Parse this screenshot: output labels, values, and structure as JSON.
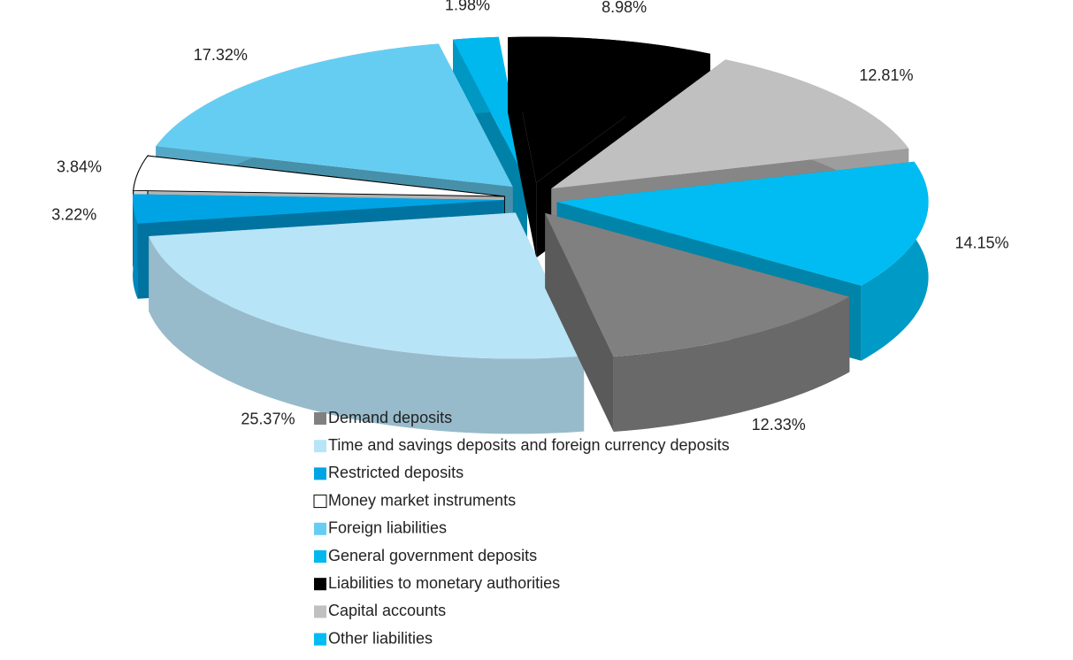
{
  "chart_data": {
    "type": "pie",
    "categories": [
      "Demand deposits",
      "Time and savings deposits and foreign currency deposits",
      "Restricted deposits",
      "Money market instruments",
      "Foreign liabilities",
      "General government deposits",
      "Liabilities to monetary authorities",
      "Capital accounts",
      "Other liabilities"
    ],
    "values": [
      12.33,
      25.37,
      3.22,
      3.84,
      17.32,
      1.98,
      8.98,
      12.81,
      14.15
    ],
    "value_labels": [
      "12.33%",
      "25.37%",
      "3.22%",
      "3.84%",
      "17.32%",
      "1.98%",
      "8.98%",
      "12.81%",
      "14.15%"
    ],
    "colors": [
      "#808080",
      "#b8e4f8",
      "#00a4e4",
      "#ffffff",
      "#66cdf2",
      "#00b8ee",
      "#000000",
      "#c0c0c0",
      "#00bcf2"
    ],
    "legend": "bottom"
  }
}
